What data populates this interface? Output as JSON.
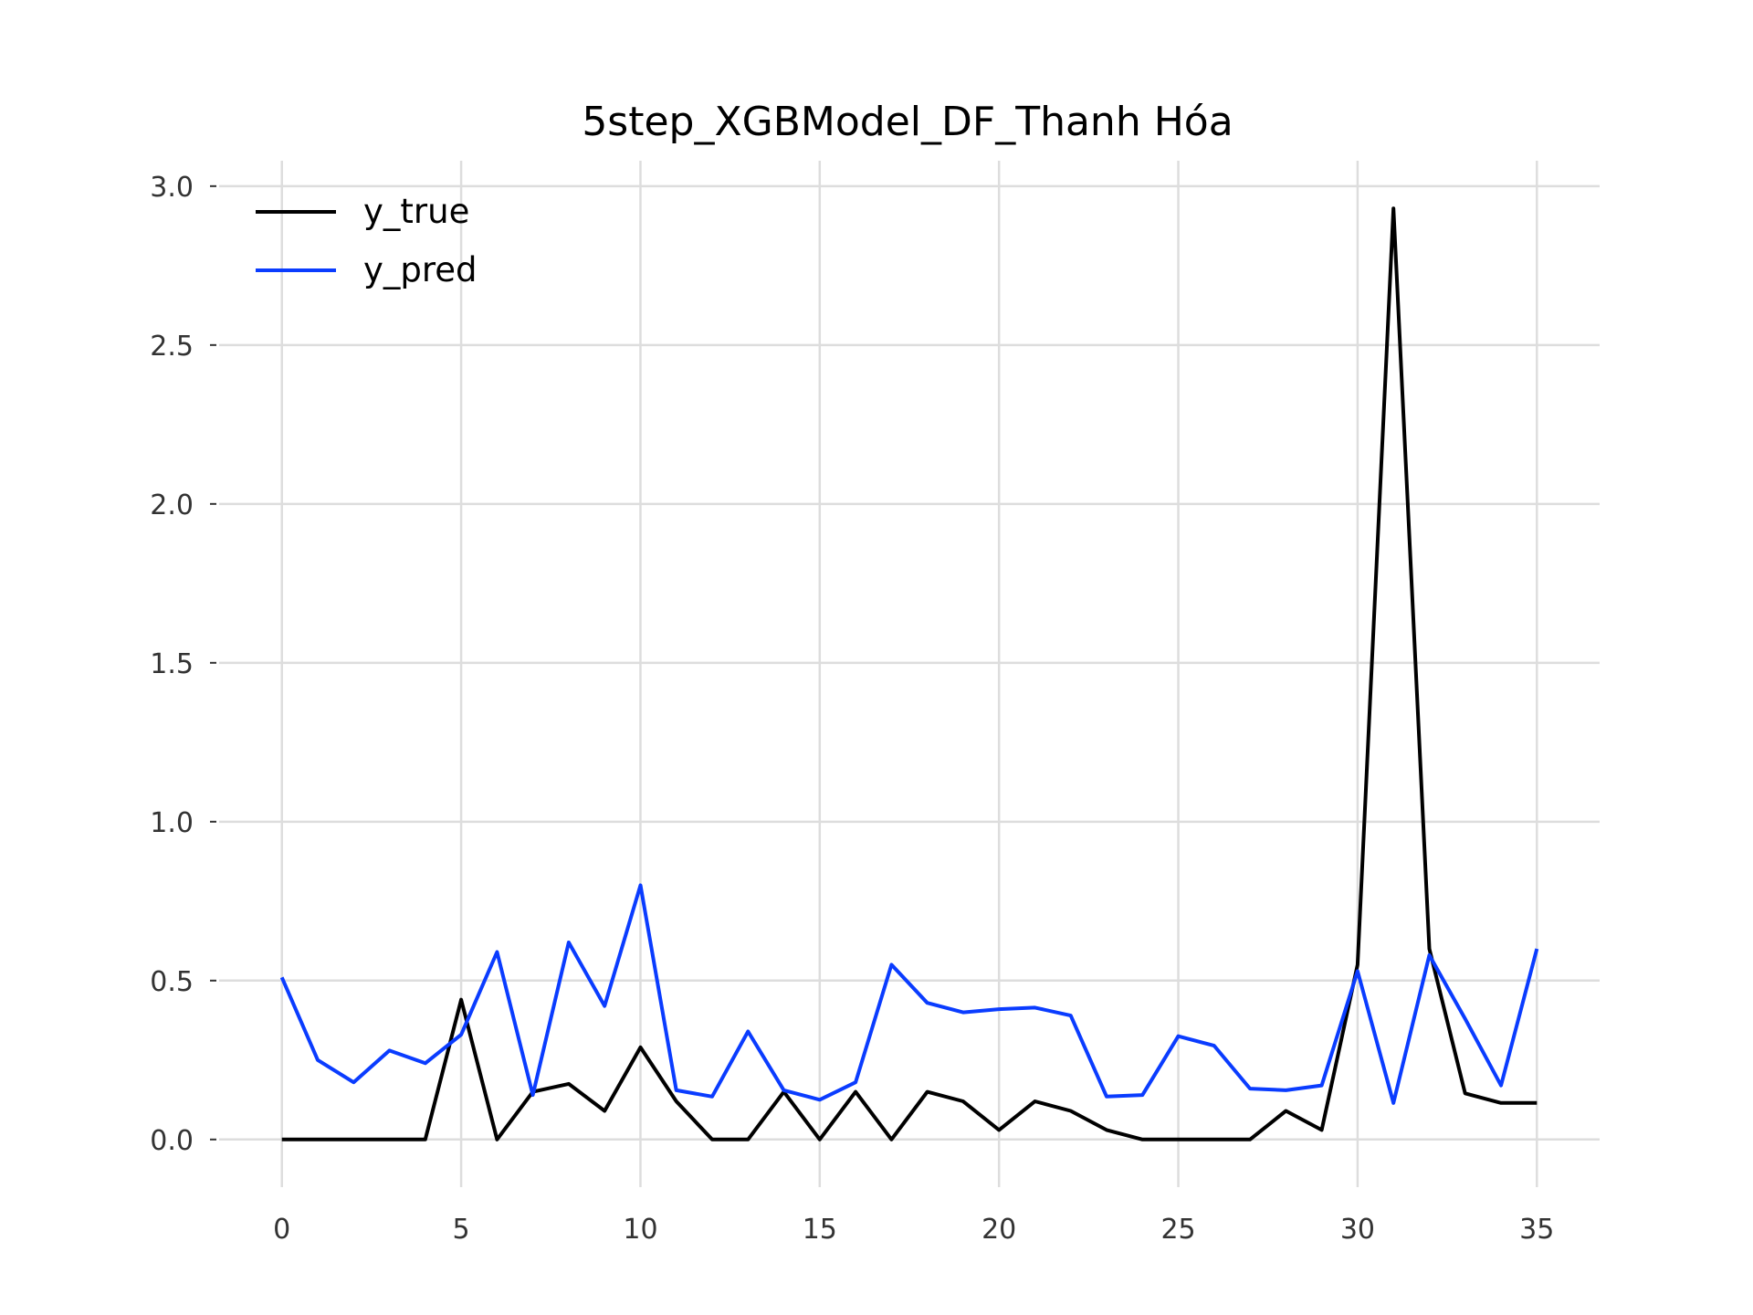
{
  "chart_data": {
    "type": "line",
    "title": "5step_XGBModel_DF_Thanh Hóa",
    "xlabel": "",
    "ylabel": "",
    "xlim": [
      -1.75,
      36.75
    ],
    "ylim": [
      -0.15,
      3.08
    ],
    "xticks": [
      0,
      5,
      10,
      15,
      20,
      25,
      30,
      35
    ],
    "xtick_labels": [
      "0",
      "5",
      "10",
      "15",
      "20",
      "25",
      "30",
      "35"
    ],
    "yticks": [
      0.0,
      0.5,
      1.0,
      1.5,
      2.0,
      2.5,
      3.0
    ],
    "ytick_labels": [
      "0.0",
      "0.5",
      "1.0",
      "1.5",
      "2.0",
      "2.5",
      "3.0"
    ],
    "grid": true,
    "legend": "top-left",
    "x": [
      0,
      1,
      2,
      3,
      4,
      5,
      6,
      7,
      8,
      9,
      10,
      11,
      12,
      13,
      14,
      15,
      16,
      17,
      18,
      19,
      20,
      21,
      22,
      23,
      24,
      25,
      26,
      27,
      28,
      29,
      30,
      31,
      32,
      33,
      34,
      35
    ],
    "series": [
      {
        "name": "y_true",
        "color": "#000000",
        "values": [
          0,
          0,
          0,
          0,
          0,
          0.44,
          0,
          0.15,
          0.175,
          0.09,
          0.29,
          0.12,
          0,
          0,
          0.15,
          0,
          0.15,
          0,
          0.15,
          0.12,
          0.03,
          0.12,
          0.09,
          0.03,
          0,
          0,
          0,
          0,
          0.09,
          0.03,
          0.55,
          2.93,
          0.6,
          0.145,
          0.115,
          0.115
        ]
      },
      {
        "name": "y_pred",
        "color": "#0a3cff",
        "values": [
          0.51,
          0.25,
          0.18,
          0.28,
          0.24,
          0.33,
          0.59,
          0.14,
          0.62,
          0.42,
          0.8,
          0.155,
          0.135,
          0.34,
          0.155,
          0.125,
          0.18,
          0.55,
          0.43,
          0.4,
          0.41,
          0.415,
          0.39,
          0.135,
          0.14,
          0.325,
          0.295,
          0.16,
          0.155,
          0.17,
          0.53,
          0.115,
          0.58,
          0.38,
          0.17,
          0.6
        ]
      }
    ]
  }
}
